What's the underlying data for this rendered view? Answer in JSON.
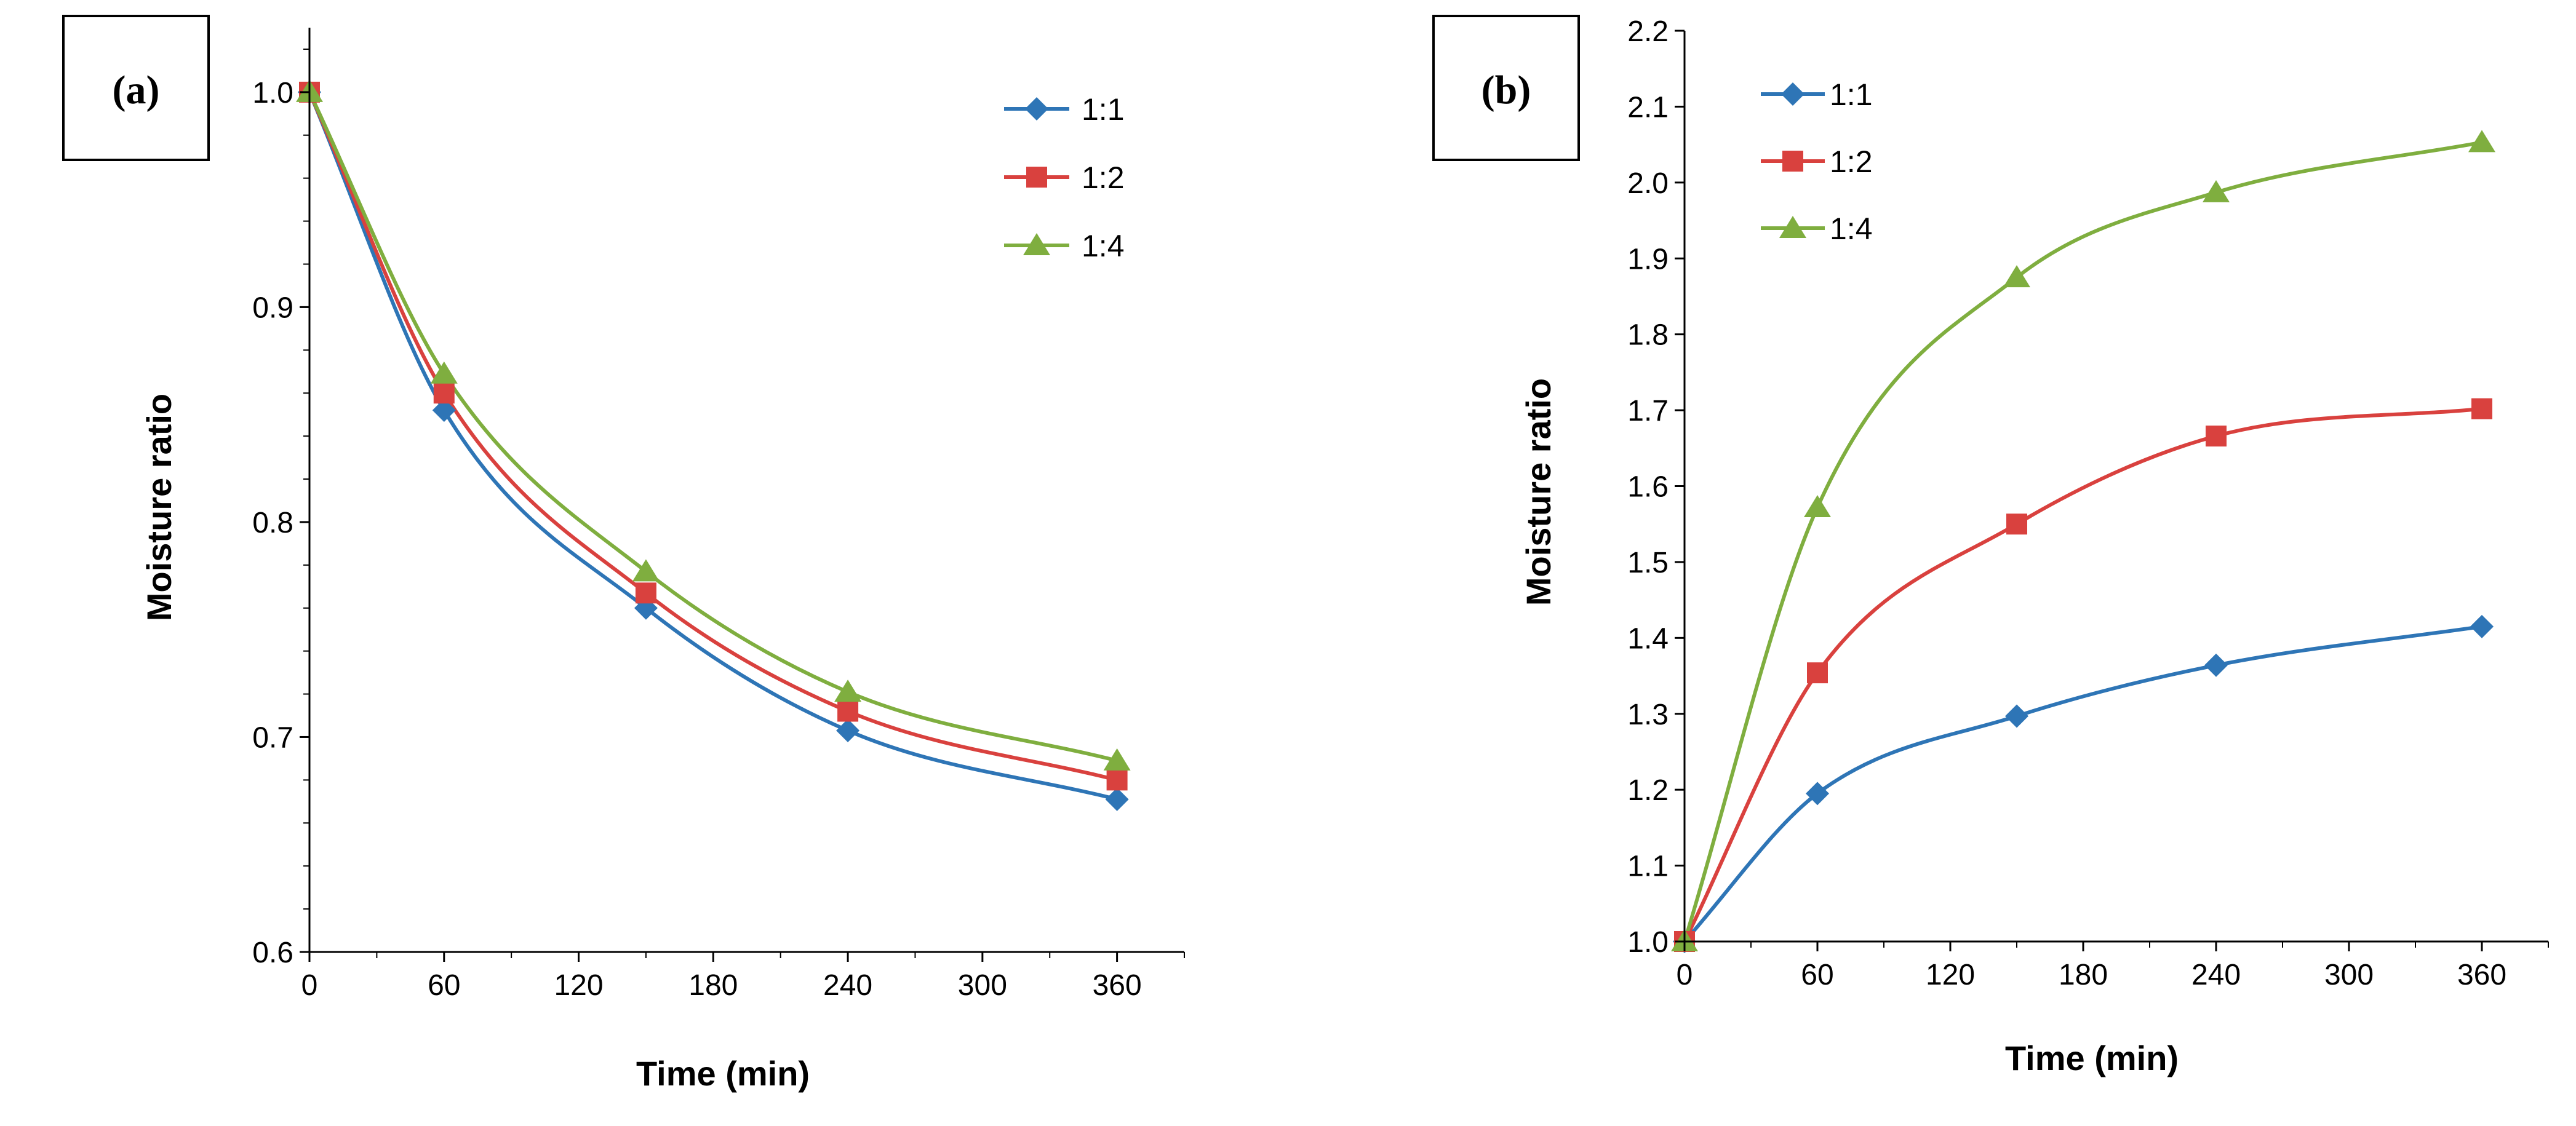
{
  "chart_data": [
    {
      "type": "line",
      "panel_label": "(a)",
      "xlabel": "Time (min)",
      "ylabel": "Moisture ratio",
      "xlim": [
        0,
        390
      ],
      "ylim": [
        0.6,
        1.03
      ],
      "x_ticks": [
        0,
        60,
        120,
        180,
        240,
        300,
        360
      ],
      "x_tick_labels": [
        "0",
        "60",
        "120",
        "180",
        "240",
        "300",
        "360"
      ],
      "y_ticks": [
        0.6,
        0.7,
        0.8,
        0.9,
        1.0
      ],
      "y_tick_labels": [
        "0.6",
        "0.7",
        "0.8",
        "0.9",
        "1.0"
      ],
      "grid": false,
      "legend_position": "top-right",
      "x": [
        0,
        60,
        150,
        240,
        360
      ],
      "series": [
        {
          "name": "1:1",
          "color": "#2E75B6",
          "marker": "diamond",
          "values": [
            1.0,
            0.852,
            0.76,
            0.703,
            0.671
          ]
        },
        {
          "name": "1:2",
          "color": "#D9413E",
          "marker": "square",
          "values": [
            1.0,
            0.86,
            0.767,
            0.712,
            0.68
          ]
        },
        {
          "name": "1:4",
          "color": "#7FAE3F",
          "marker": "triangle",
          "values": [
            1.0,
            0.869,
            0.777,
            0.721,
            0.689
          ]
        }
      ]
    },
    {
      "type": "line",
      "panel_label": "(b)",
      "xlabel": "Time (min)",
      "ylabel": "Moisture ratio",
      "xlim": [
        0,
        390
      ],
      "ylim": [
        1.0,
        2.2
      ],
      "x_ticks": [
        0,
        60,
        120,
        180,
        240,
        300,
        360
      ],
      "x_tick_labels": [
        "0",
        "60",
        "120",
        "180",
        "240",
        "300",
        "360"
      ],
      "y_ticks": [
        1.0,
        1.1,
        1.2,
        1.3,
        1.4,
        1.5,
        1.6,
        1.7,
        1.8,
        1.9,
        2.0,
        2.1,
        2.2
      ],
      "y_tick_labels": [
        "1.0",
        "1.1",
        "1.2",
        "1.3",
        "1.4",
        "1.5",
        "1.6",
        "1.7",
        "1.8",
        "1.9",
        "2.0",
        "2.1",
        "2.2"
      ],
      "grid": false,
      "legend_position": "top-left",
      "x": [
        0,
        60,
        150,
        240,
        360
      ],
      "series": [
        {
          "name": "1:1",
          "color": "#2E75B6",
          "marker": "diamond",
          "values": [
            1.0,
            1.195,
            1.297,
            1.364,
            1.415
          ]
        },
        {
          "name": "1:2",
          "color": "#D9413E",
          "marker": "square",
          "values": [
            1.0,
            1.354,
            1.55,
            1.666,
            1.702
          ]
        },
        {
          "name": "1:4",
          "color": "#7FAE3F",
          "marker": "triangle",
          "values": [
            1.0,
            1.572,
            1.875,
            1.987,
            2.053
          ]
        }
      ]
    }
  ]
}
